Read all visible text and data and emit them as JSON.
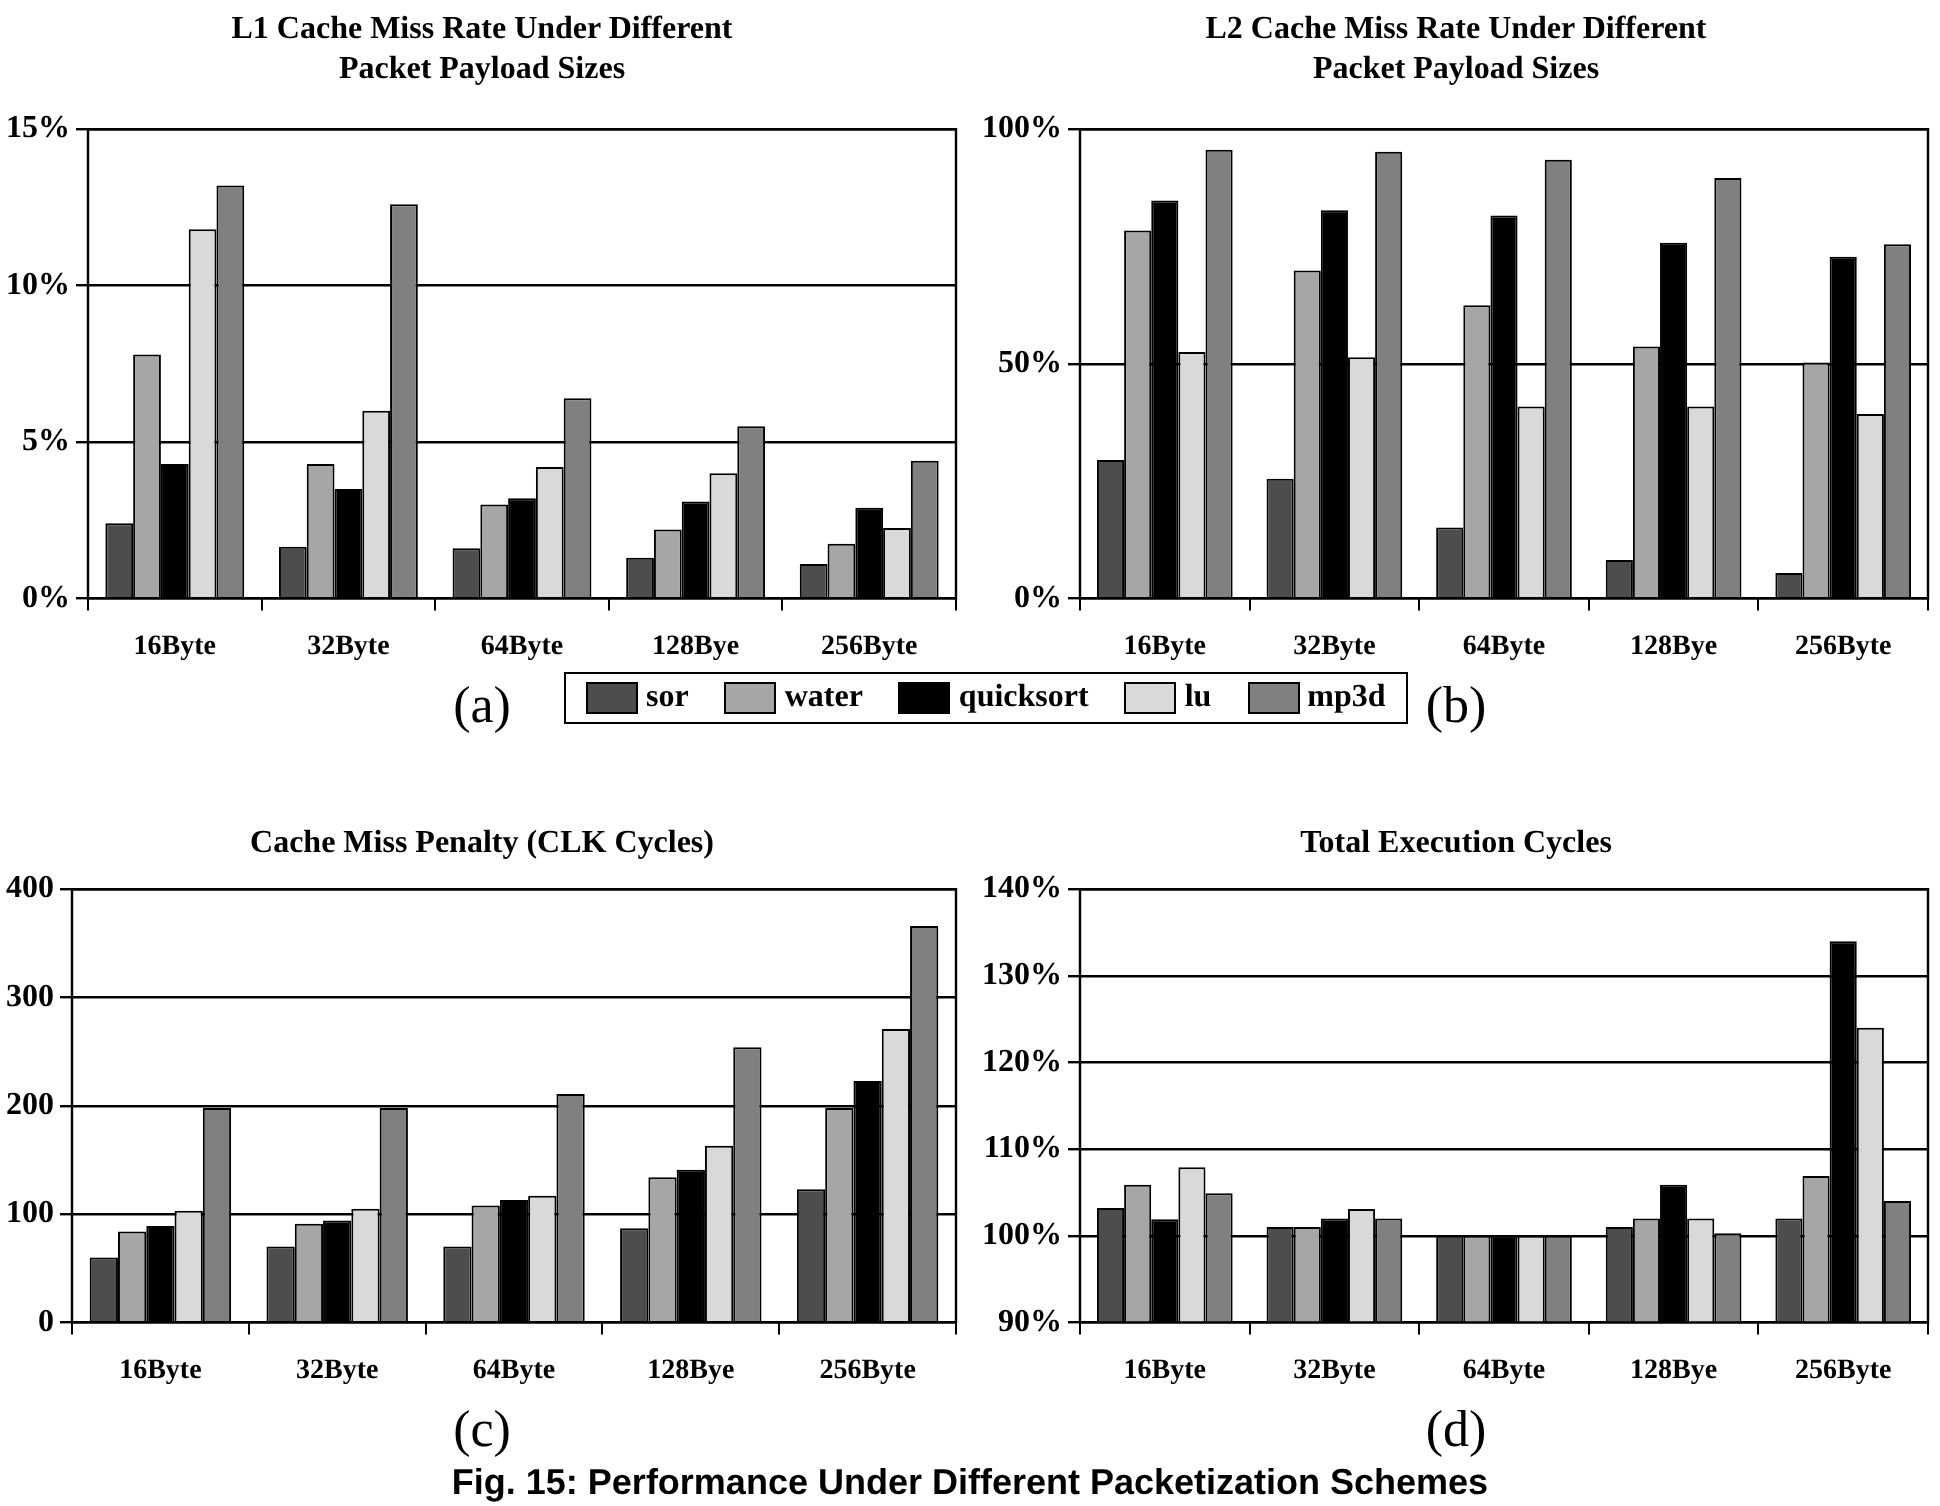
{
  "chart_data": [
    {
      "type": "bar",
      "title": "L1 Cache Miss Rate Under Different Packet Payload Sizes",
      "categories": [
        "16Byte",
        "32Byte",
        "64Byte",
        "128Bye",
        "256Byte"
      ],
      "series": [
        {
          "name": "sor",
          "color": "#4d4d4d",
          "values": [
            2.4,
            1.65,
            1.6,
            1.3,
            1.1
          ]
        },
        {
          "name": "water",
          "color": "#a6a6a6",
          "values": [
            7.8,
            4.3,
            3.0,
            2.2,
            1.75
          ]
        },
        {
          "name": "quicksort",
          "color": "#000000",
          "values": [
            4.3,
            3.5,
            3.2,
            3.1,
            2.9
          ]
        },
        {
          "name": "lu",
          "color": "#d9d9d9",
          "values": [
            11.8,
            6.0,
            4.2,
            4.0,
            2.25
          ]
        },
        {
          "name": "mp3d",
          "color": "#808080",
          "values": [
            13.2,
            12.6,
            6.4,
            5.5,
            4.4
          ]
        }
      ],
      "ylim": [
        0,
        15
      ],
      "yticks": [
        {
          "value": 0,
          "label": "0%"
        },
        {
          "value": 5,
          "label": "5%"
        },
        {
          "value": 10,
          "label": "10%"
        },
        {
          "value": 15,
          "label": "15%"
        }
      ],
      "grid": "y",
      "legend": "bottom",
      "annotations": [
        "(a)"
      ]
    },
    {
      "type": "bar",
      "title": "L2 Cache Miss Rate Under Different Packet Payload Sizes",
      "categories": [
        "16Byte",
        "32Byte",
        "64Byte",
        "128Bye",
        "256Byte"
      ],
      "series": [
        {
          "color": "#4d4d4d",
          "values": [
            29.5,
            25.5,
            15.1,
            8.2,
            5.4
          ]
        },
        {
          "color": "#a6a6a6",
          "values": [
            78.4,
            69.9,
            62.5,
            53.7,
            50.3
          ]
        },
        {
          "color": "#000000",
          "values": [
            84.8,
            82.7,
            81.6,
            75.8,
            72.8
          ]
        },
        {
          "color": "#d9d9d9",
          "values": [
            52.5,
            51.4,
            40.9,
            40.9,
            39.3
          ]
        },
        {
          "color": "#808080",
          "values": [
            95.6,
            95.2,
            93.5,
            89.6,
            75.5
          ]
        }
      ],
      "ylim": [
        0,
        100
      ],
      "yticks": [
        {
          "value": 0,
          "label": "0%"
        },
        {
          "value": 50,
          "label": "50%"
        },
        {
          "value": 100,
          "label": "100%"
        }
      ],
      "grid": "y",
      "annotations": [
        "(b)"
      ]
    },
    {
      "type": "bar",
      "title": "Cache Miss Penalty (CLK Cycles)",
      "categories": [
        "16Byte",
        "32Byte",
        "64Byte",
        "128Bye",
        "256Byte"
      ],
      "series": [
        {
          "color": "#4d4d4d",
          "values": [
            60,
            70,
            70,
            87,
            123
          ]
        },
        {
          "color": "#a6a6a6",
          "values": [
            84,
            91,
            108,
            134,
            198
          ]
        },
        {
          "color": "#000000",
          "values": [
            89,
            94,
            113,
            141,
            223
          ]
        },
        {
          "color": "#d9d9d9",
          "values": [
            103,
            105,
            117,
            163,
            271
          ]
        },
        {
          "color": "#808080",
          "values": [
            198,
            198,
            211,
            254,
            366
          ]
        }
      ],
      "ylim": [
        0,
        400
      ],
      "yticks": [
        0,
        100,
        200,
        300,
        400
      ],
      "grid": "y",
      "annotations": [
        "(c)"
      ]
    },
    {
      "type": "bar",
      "title": "Total Execution Cycles",
      "categories": [
        "16Byte",
        "32Byte",
        "64Byte",
        "128Bye",
        "256Byte"
      ],
      "series": [
        {
          "color": "#4d4d4d",
          "values": [
            103.2,
            101.0,
            100,
            101.0,
            102.0
          ]
        },
        {
          "color": "#a6a6a6",
          "values": [
            105.9,
            101.0,
            100,
            102.0,
            106.9
          ]
        },
        {
          "color": "#000000",
          "values": [
            101.9,
            102.0,
            100,
            105.9,
            134.0
          ]
        },
        {
          "color": "#d9d9d9",
          "values": [
            107.9,
            103.1,
            100,
            102.0,
            124.0
          ]
        },
        {
          "color": "#808080",
          "values": [
            104.9,
            102.0,
            100,
            100.3,
            104.0
          ]
        }
      ],
      "ylim": [
        90,
        140
      ],
      "yticks": [
        {
          "value": 90,
          "label": "90%"
        },
        {
          "value": 100,
          "label": "100%"
        },
        {
          "value": 110,
          "label": "110%"
        },
        {
          "value": 120,
          "label": "120%"
        },
        {
          "value": 130,
          "label": "130%"
        },
        {
          "value": 140,
          "label": "140%"
        }
      ],
      "grid": "y",
      "annotations": [
        "(d)",
        "Fig. 15: Performance Under Different Packetization Schemes"
      ]
    }
  ]
}
